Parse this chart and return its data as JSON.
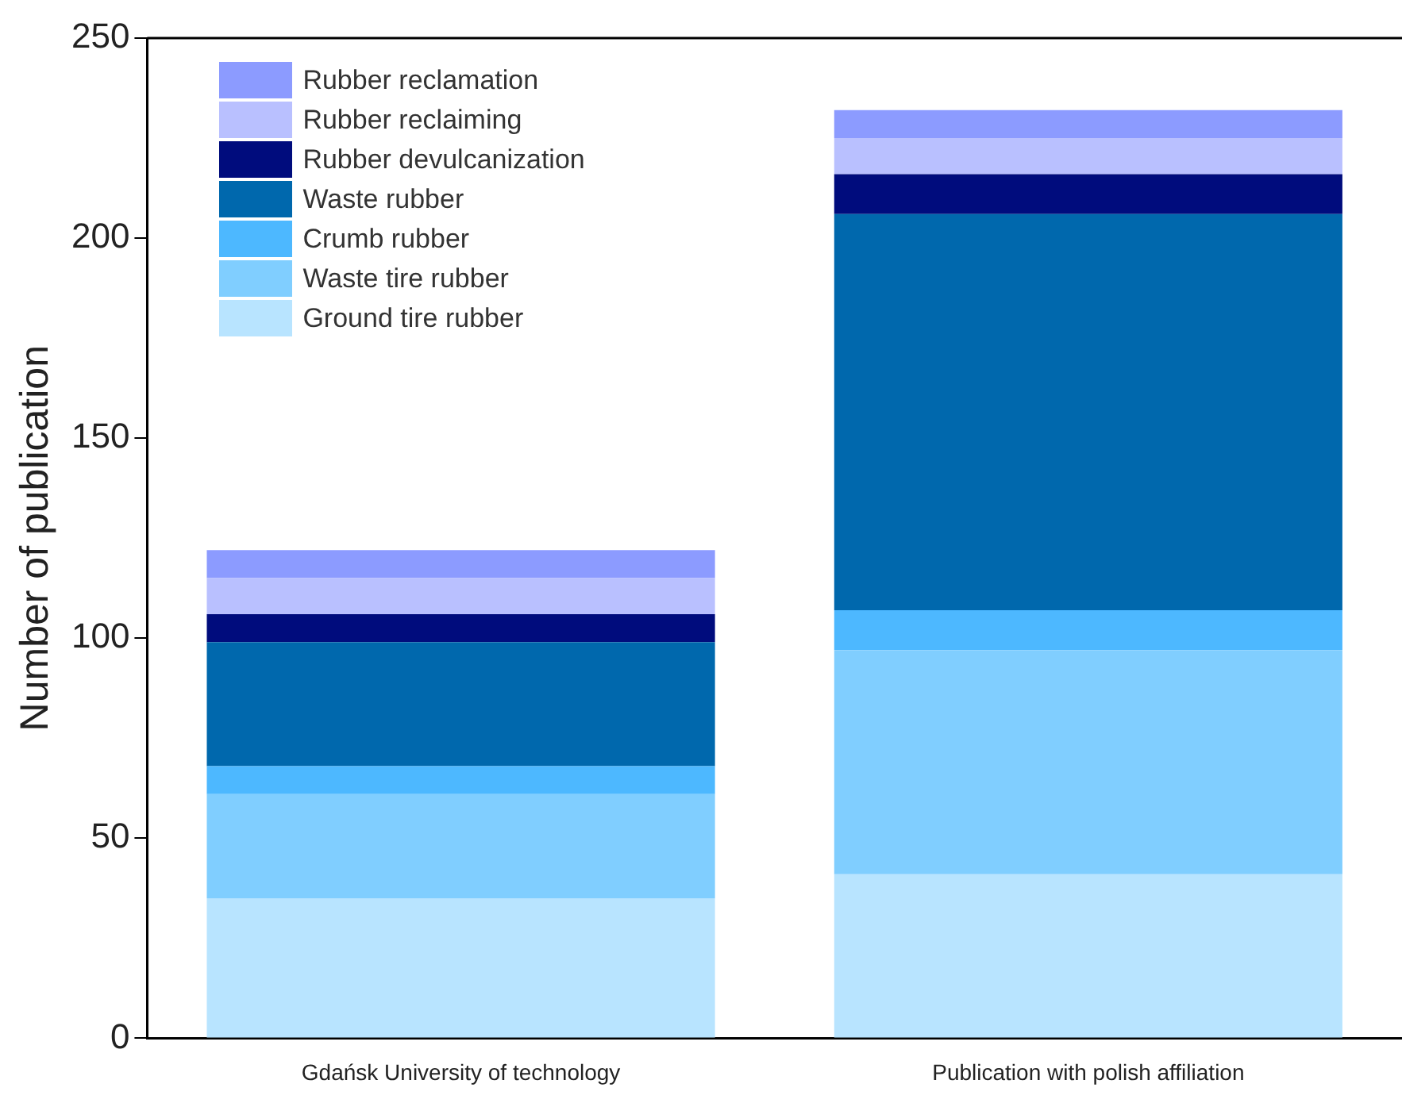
{
  "chart_data": {
    "type": "bar",
    "stacked": true,
    "ylabel": "Number of publication",
    "categories": [
      "Gdańsk University of technology",
      "Publication with polish affiliation"
    ],
    "series": [
      {
        "name": "Ground tire rubber",
        "color": "#b8e4ff",
        "values": [
          35,
          41
        ]
      },
      {
        "name": "Waste tire rubber",
        "color": "#80ceff",
        "values": [
          26,
          56
        ]
      },
      {
        "name": "Crumb rubber",
        "color": "#4db8ff",
        "values": [
          7,
          10
        ]
      },
      {
        "name": "Waste rubber",
        "color": "#0068ad",
        "values": [
          31,
          99
        ]
      },
      {
        "name": "Rubber devulcanization",
        "color": "#000c7d",
        "values": [
          7,
          10
        ]
      },
      {
        "name": "Rubber reclaiming",
        "color": "#b9c0ff",
        "values": [
          9,
          9
        ]
      },
      {
        "name": "Rubber reclamation",
        "color": "#8c9bff",
        "values": [
          7,
          7
        ]
      }
    ],
    "ylim": [
      0,
      250
    ],
    "yticks": [
      0,
      50,
      100,
      150,
      200,
      250
    ],
    "grid": false,
    "legend": "top left"
  }
}
